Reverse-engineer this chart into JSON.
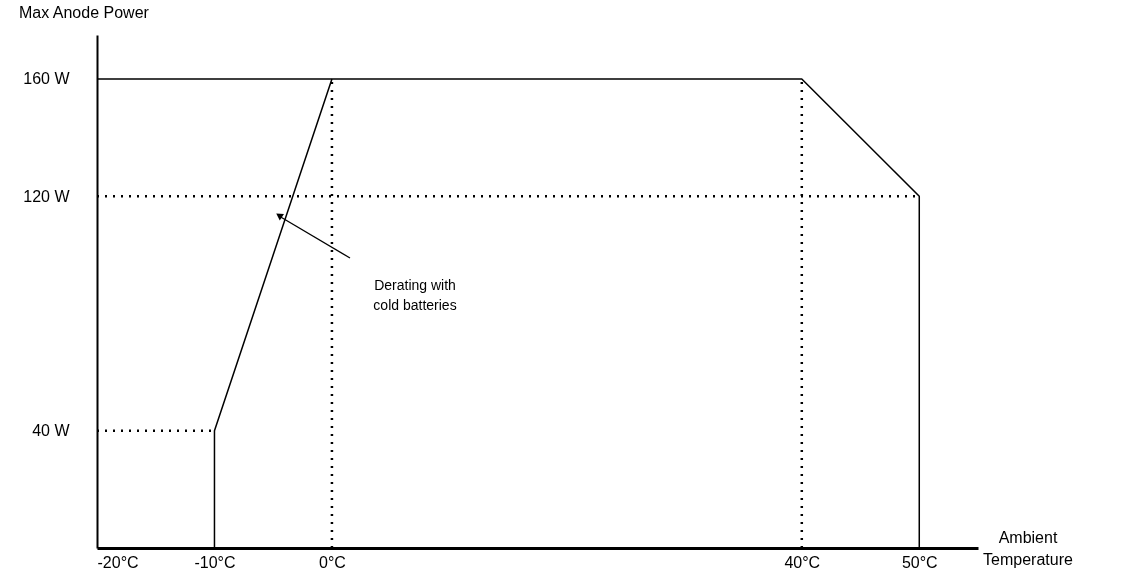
{
  "chart_data": {
    "type": "line",
    "xlabel": "Ambient Temperature",
    "ylabel": "Max Anode Power",
    "xlim": [
      -20,
      55
    ],
    "ylim": [
      0,
      175
    ],
    "xticks": [
      {
        "value": -20,
        "label": "-20°C"
      },
      {
        "value": -10,
        "label": "-10°C"
      },
      {
        "value": 0,
        "label": "0°C"
      },
      {
        "value": 40,
        "label": "40°C"
      },
      {
        "value": 50,
        "label": "50°C"
      }
    ],
    "yticks": [
      {
        "value": 40,
        "label": "40 W"
      },
      {
        "value": 120,
        "label": "120 W"
      },
      {
        "value": 160,
        "label": "160 W"
      }
    ],
    "series": [
      {
        "color": "#000000",
        "line_style": "solid",
        "x": [
          -20,
          40,
          50,
          50
        ],
        "values": [
          160,
          160,
          120,
          0
        ]
      },
      {
        "color": "#000000",
        "line_style": "solid",
        "x": [
          -10,
          -10,
          0
        ],
        "values": [
          0,
          40,
          160
        ]
      },
      {
        "color": "#000000",
        "line_style": "dotted",
        "x": [
          -20,
          50
        ],
        "values": [
          120,
          120
        ]
      },
      {
        "color": "#000000",
        "line_style": "dotted",
        "x": [
          -20,
          -10
        ],
        "values": [
          40,
          40
        ]
      },
      {
        "color": "#000000",
        "line_style": "dotted",
        "x": [
          0,
          0
        ],
        "values": [
          0,
          160
        ]
      },
      {
        "color": "#000000",
        "line_style": "dotted",
        "x": [
          40,
          40
        ],
        "values": [
          0,
          160
        ]
      }
    ],
    "annotations": [
      "Derating with cold batteries"
    ],
    "grid": false,
    "marker": "none"
  }
}
